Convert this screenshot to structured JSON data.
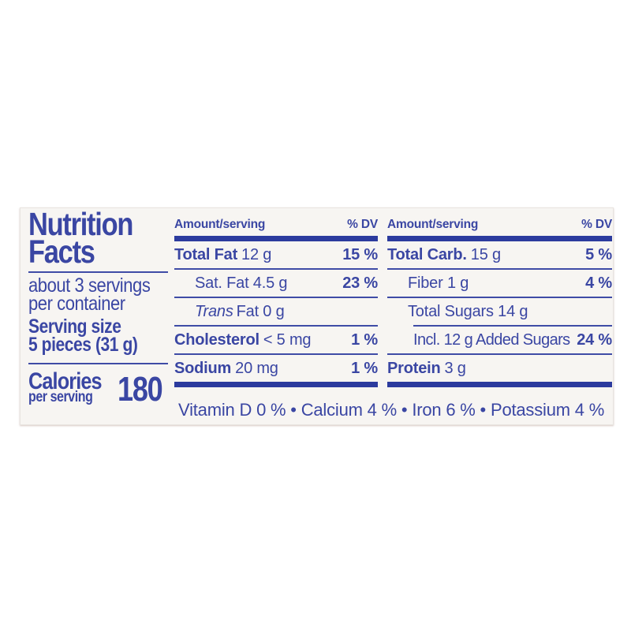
{
  "label": {
    "colors": {
      "text_blue": "#3a46a3",
      "bar_blue": "#2c3b9e",
      "rule_blue": "#3f4ca6",
      "card_bg": "#f7f5f2"
    },
    "title": {
      "line1": "Nutrition",
      "line2": "Facts"
    },
    "servings": {
      "line1": "about 3 servings",
      "line2": "per container"
    },
    "serving_size": {
      "label": "Serving size",
      "value": "5 pieces (31 g)"
    },
    "calories": {
      "label": "Calories",
      "sublabel": "per serving",
      "value": "180"
    },
    "columns": {
      "header": {
        "amount": "Amount/serving",
        "dv": "% DV"
      },
      "fat_rows": [
        {
          "name": "Total Fat",
          "value": "12 g",
          "dv": "15 %"
        },
        {
          "name": "Sat. Fat",
          "value": "4.5 g",
          "dv": "23 %"
        },
        {
          "name_italic": "Trans",
          "name": "Fat",
          "value": "0 g",
          "dv": ""
        },
        {
          "name": "Cholesterol",
          "value": "< 5 mg",
          "dv": "1 %"
        },
        {
          "name": "Sodium",
          "value": "20 mg",
          "dv": "1 %"
        }
      ],
      "carb_rows": [
        {
          "name": "Total Carb.",
          "value": "15 g",
          "dv": "5 %"
        },
        {
          "name": "Fiber",
          "value": "1 g",
          "dv": "4 %"
        },
        {
          "name": "Total Sugars",
          "value": "14 g",
          "dv": ""
        },
        {
          "name": "Incl. 12 g Added Sugars",
          "value": "",
          "dv": "24 %"
        },
        {
          "name": "Protein",
          "value": "3 g",
          "dv": ""
        }
      ]
    },
    "footer": "Vitamin D 0 % • Calcium 4 % • Iron 6 % • Potassium 4 %"
  }
}
